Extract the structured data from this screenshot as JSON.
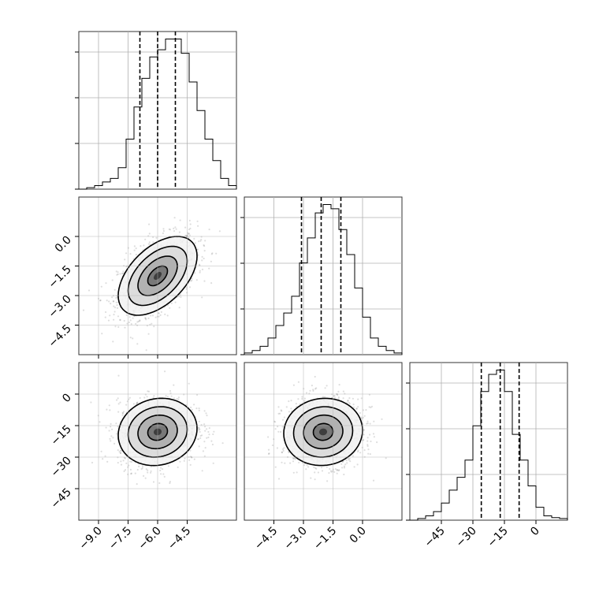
{
  "chart_data": {
    "type": "corner",
    "title": "",
    "colors": {
      "line": "#000000",
      "grid": "#b0b0b0",
      "frame": "#333333",
      "background": "#ffffff"
    },
    "grid": true,
    "parameters": [
      {
        "index": 0,
        "range": [
          -10.0,
          -2.0
        ],
        "ticks": [
          -9.0,
          -7.5,
          -6.0,
          -4.5
        ],
        "tick_labels": [
          "−9.0",
          "−7.5",
          "−6.0",
          "−4.5"
        ]
      },
      {
        "index": 1,
        "range": [
          -6.0,
          2.0
        ],
        "ticks": [
          -4.5,
          -3.0,
          -1.5,
          0.0
        ],
        "tick_labels": [
          "−4.5",
          "−3.0",
          "−1.5",
          "0.0"
        ]
      },
      {
        "index": 2,
        "range": [
          -60.0,
          15.0
        ],
        "ticks": [
          -45,
          -30,
          -15,
          0
        ],
        "tick_labels": [
          "−45",
          "−30",
          "−15",
          "0"
        ]
      }
    ],
    "histograms": [
      {
        "param": 0,
        "bin_edges": [
          -10.0,
          -9.6,
          -9.2,
          -8.8,
          -8.4,
          -8.0,
          -7.6,
          -7.2,
          -6.8,
          -6.4,
          -6.0,
          -5.6,
          -5.2,
          -4.8,
          -4.4,
          -4.0,
          -3.6,
          -3.2,
          -2.8,
          -2.4,
          -2.0
        ],
        "counts": [
          0,
          2,
          5,
          10,
          15,
          30,
          70,
          115,
          155,
          185,
          195,
          210,
          210,
          190,
          150,
          110,
          70,
          40,
          15,
          5
        ],
        "quantiles": [
          -6.9,
          -6.0,
          -5.1
        ]
      },
      {
        "param": 1,
        "bin_edges": [
          -6.0,
          -5.6,
          -5.2,
          -4.8,
          -4.4,
          -4.0,
          -3.6,
          -3.2,
          -2.8,
          -2.4,
          -2.0,
          -1.6,
          -1.2,
          -0.8,
          -0.4,
          0.0,
          0.4,
          0.8,
          1.2,
          1.6,
          2.0
        ],
        "counts": [
          2,
          5,
          10,
          20,
          35,
          50,
          70,
          110,
          140,
          170,
          180,
          175,
          150,
          120,
          80,
          45,
          20,
          10,
          5,
          2
        ],
        "quantiles": [
          -3.1,
          -2.1,
          -1.1
        ]
      },
      {
        "param": 2,
        "bin_edges": [
          -60.0,
          -56.25,
          -52.5,
          -48.75,
          -45.0,
          -41.25,
          -37.5,
          -33.75,
          -30.0,
          -26.25,
          -22.5,
          -18.75,
          -15.0,
          -11.25,
          -7.5,
          -3.75,
          0.0,
          3.75,
          7.5,
          11.25,
          15.0
        ],
        "counts": [
          0,
          2,
          5,
          10,
          20,
          35,
          50,
          70,
          110,
          150,
          170,
          175,
          150,
          100,
          70,
          40,
          15,
          5,
          3,
          2
        ],
        "quantiles": [
          -26.0,
          -17.0,
          -8.0
        ]
      }
    ],
    "joint": [
      {
        "x_param": 0,
        "y_param": 1,
        "mean": [
          -6.0,
          -2.0
        ],
        "std": [
          1.0,
          1.0
        ],
        "correlation": 0.5,
        "contour_levels_sigma": [
          0.5,
          1.0,
          1.5,
          2.0
        ]
      },
      {
        "x_param": 0,
        "y_param": 2,
        "mean": [
          -6.0,
          -18.0
        ],
        "std": [
          1.0,
          8.0
        ],
        "correlation": 0.1,
        "contour_levels_sigma": [
          0.5,
          1.0,
          1.5,
          2.0
        ]
      },
      {
        "x_param": 1,
        "y_param": 2,
        "mean": [
          -2.0,
          -18.0
        ],
        "std": [
          1.0,
          8.0
        ],
        "correlation": 0.05,
        "contour_levels_sigma": [
          0.5,
          1.0,
          1.5,
          2.0
        ]
      }
    ]
  }
}
